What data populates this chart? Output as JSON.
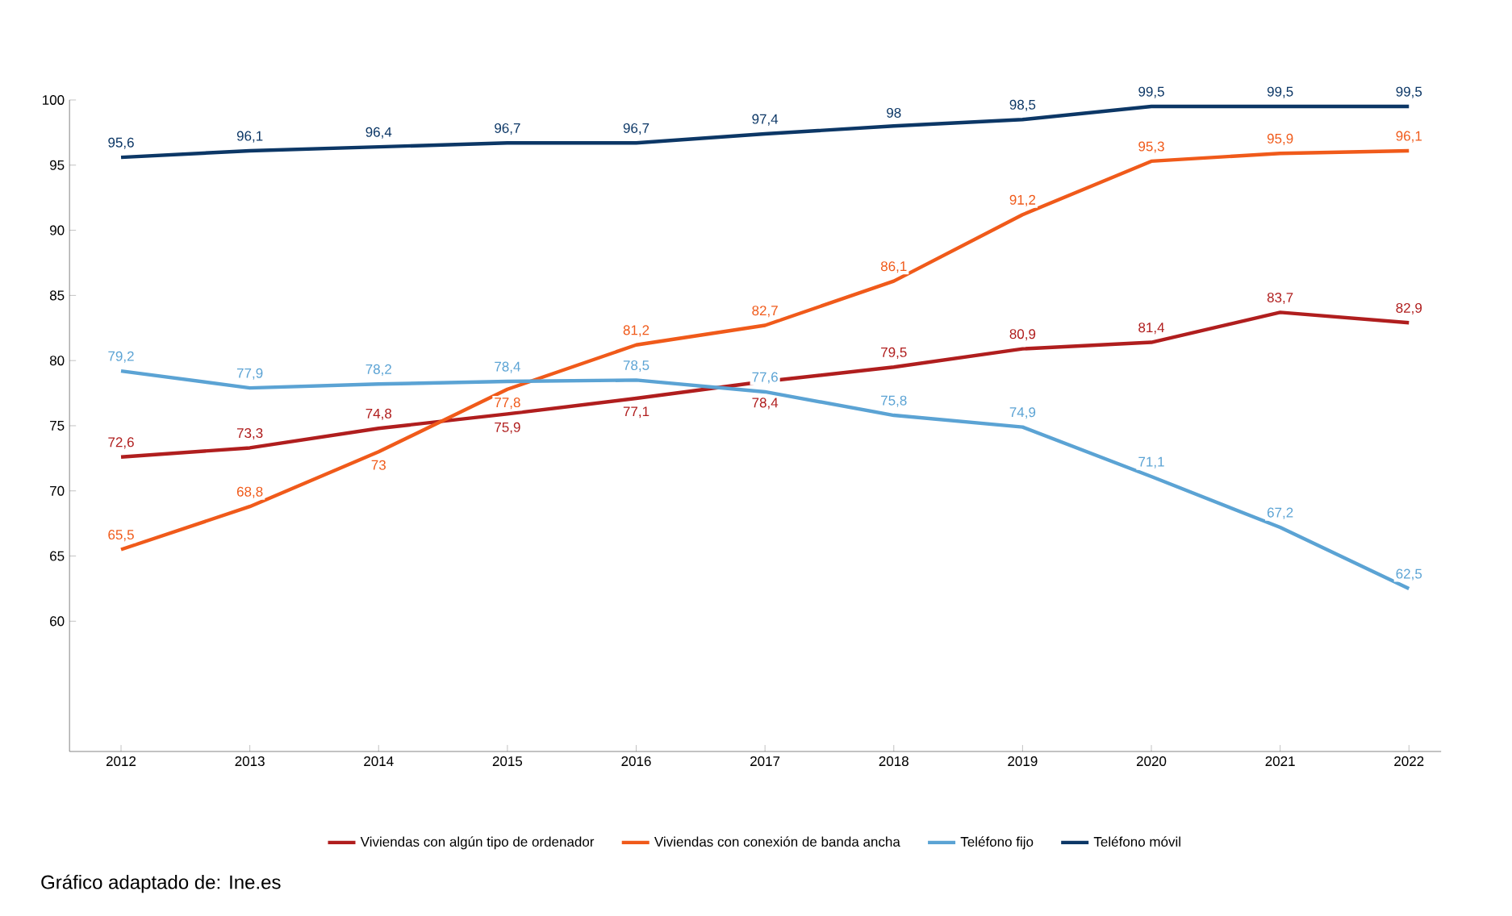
{
  "chart_data": {
    "type": "line",
    "categories": [
      "2012",
      "2013",
      "2014",
      "2015",
      "2016",
      "2017",
      "2018",
      "2019",
      "2020",
      "2021",
      "2022"
    ],
    "series": [
      {
        "name": "Viviendas con algún tipo de ordenador",
        "color": "#b01e1e",
        "values": [
          72.6,
          73.3,
          74.8,
          75.9,
          77.1,
          78.4,
          79.5,
          80.9,
          81.4,
          83.7,
          82.9
        ],
        "value_labels": [
          "72,6",
          "73,3",
          "74,8",
          "75,9",
          "77,1",
          "78,4",
          "79,5",
          "80,9",
          "81,4",
          "83,7",
          "82,9"
        ]
      },
      {
        "name": "Viviendas con conexión de banda ancha",
        "color": "#f05a1a",
        "values": [
          65.5,
          68.8,
          73,
          77.8,
          81.2,
          82.7,
          86.1,
          91.2,
          95.3,
          95.9,
          96.1
        ],
        "value_labels": [
          "65,5",
          "68,8",
          "73",
          "77,8",
          "81,2",
          "82,7",
          "86,1",
          "91,2",
          "95,3",
          "95,9",
          "96,1"
        ]
      },
      {
        "name": "Teléfono fijo",
        "color": "#5ba3d4",
        "values": [
          79.2,
          77.9,
          78.2,
          78.4,
          78.5,
          77.6,
          75.8,
          74.9,
          71.1,
          67.2,
          62.5
        ],
        "value_labels": [
          "79,2",
          "77,9",
          "78,2",
          "78,4",
          "78,5",
          "77,6",
          "75,8",
          "74,9",
          "71,1",
          "67,2",
          "62,5"
        ]
      },
      {
        "name": "Teléfono móvil",
        "color": "#0c3766",
        "values": [
          95.6,
          96.1,
          96.4,
          96.7,
          96.7,
          97.4,
          98,
          98.5,
          99.5,
          99.5,
          99.5
        ],
        "value_labels": [
          "95,6",
          "96,1",
          "96,4",
          "96,7",
          "96,7",
          "97,4",
          "98",
          "98,5",
          "99,5",
          "99,5",
          "99,5"
        ]
      }
    ],
    "ylim": [
      50,
      100
    ],
    "yticks": [
      60,
      65,
      70,
      75,
      80,
      85,
      90,
      95,
      100
    ],
    "legend": "bottom",
    "annotations": [
      "Gráfico adaptado de: Ine.es"
    ]
  }
}
